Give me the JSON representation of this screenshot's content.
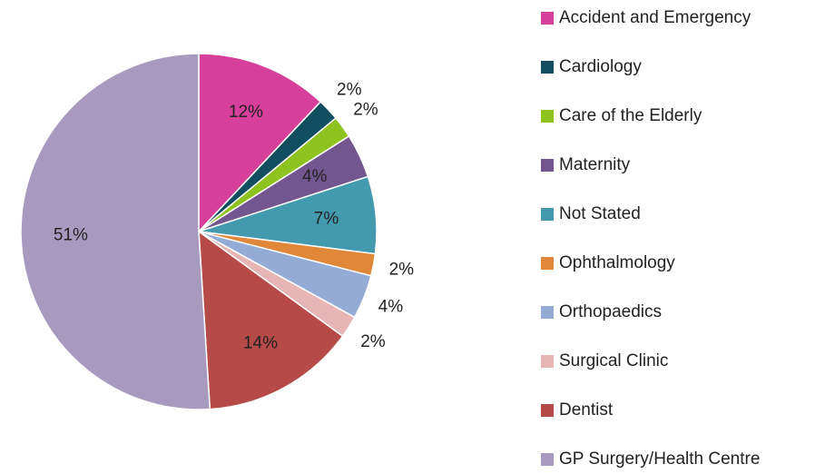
{
  "chart_data": {
    "type": "pie",
    "categories": [
      "Accident and Emergency",
      "Cardiology",
      "Care of the Elderly",
      "Maternity",
      "Not Stated",
      "Ophthalmology",
      "Orthopaedics",
      "Surgical Clinic",
      "Dentist",
      "GP Surgery/Health Centre"
    ],
    "values": [
      12,
      2,
      2,
      4,
      7,
      2,
      4,
      2,
      14,
      51
    ],
    "value_labels": [
      "12%",
      "2%",
      "2%",
      "4%",
      "7%",
      "2%",
      "4%",
      "2%",
      "14%",
      "51%"
    ],
    "colors": [
      "#d6409a",
      "#124e5f",
      "#8dc21f",
      "#73558f",
      "#4399ad",
      "#e0873a",
      "#94acd5",
      "#e8b5b5",
      "#b54a48",
      "#a89abf"
    ],
    "legend": "right"
  }
}
